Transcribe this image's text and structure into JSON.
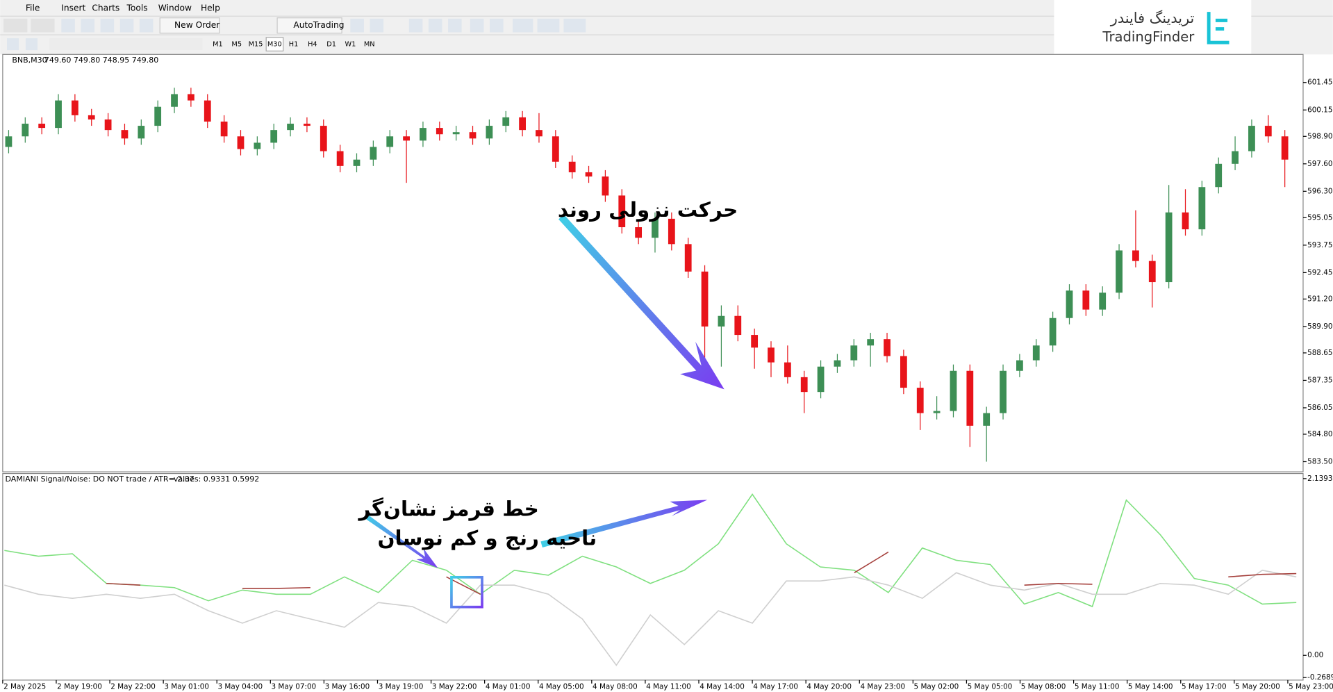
{
  "window": {
    "menu": [
      "File",
      "Insert",
      "Charts",
      "Tools",
      "Window",
      "Help"
    ],
    "toolbar": {
      "new_order": "New Order",
      "auto_trading": "AutoTrading",
      "timeframes": [
        "M1",
        "M5",
        "M15",
        "M30",
        "H1",
        "H4",
        "D1",
        "W1",
        "MN"
      ]
    },
    "logo": {
      "persian": "تریدینگ فایندر",
      "latin": "TradingFinder"
    }
  },
  "annotations": {
    "downtrend": "حرکت نزولی روند",
    "red_line_1": "خط قرمز نشان‌گر",
    "red_line_2": "ناحیه رنج و کم نوسان"
  },
  "chart_data": [
    {
      "type": "candlestick",
      "title": "BNB,M30",
      "subtitle": "749.60 749.80 748.95 749.80",
      "up_color": "#3d8f55",
      "down_color": "#e8141a",
      "open": [
        598.4,
        598.9,
        599.5,
        599.3,
        600.6,
        599.9,
        599.7,
        599.2,
        598.8,
        599.4,
        600.3,
        600.9,
        600.6,
        599.6,
        598.9,
        598.3,
        598.6,
        599.2,
        599.5,
        599.4,
        598.2,
        597.5,
        597.8,
        598.4,
        598.9,
        598.7,
        599.3,
        599.0,
        599.1,
        598.8,
        599.4,
        599.8,
        599.2,
        598.9,
        597.7,
        597.2,
        597.0,
        596.1,
        594.6,
        594.1,
        595.0,
        593.8,
        592.5,
        589.9,
        590.4,
        589.5,
        588.9,
        588.2,
        587.5,
        586.8,
        588.0,
        588.3,
        589.0,
        589.3,
        588.5,
        587.0,
        585.8,
        585.9,
        587.8,
        585.2,
        585.8,
        587.8,
        588.3,
        589.0,
        590.3,
        591.6,
        590.7,
        591.5,
        593.5,
        593.0,
        592.0,
        595.3,
        594.5,
        596.5,
        597.6,
        598.2,
        599.4,
        598.9
      ],
      "high": [
        599.2,
        599.8,
        599.8,
        600.9,
        600.9,
        600.2,
        600.0,
        599.5,
        599.7,
        600.6,
        601.2,
        601.2,
        600.9,
        599.9,
        599.2,
        598.9,
        599.5,
        599.8,
        599.8,
        599.7,
        598.5,
        598.1,
        598.7,
        599.2,
        599.2,
        599.6,
        599.6,
        599.4,
        599.4,
        599.7,
        600.1,
        600.1,
        600.0,
        599.2,
        598.0,
        597.5,
        597.3,
        596.4,
        594.9,
        595.3,
        595.3,
        594.1,
        592.8,
        590.9,
        590.9,
        589.8,
        589.2,
        589.0,
        587.8,
        588.3,
        588.6,
        589.3,
        589.6,
        589.6,
        588.8,
        587.3,
        586.6,
        588.1,
        588.1,
        586.1,
        588.1,
        588.6,
        589.3,
        590.6,
        591.9,
        591.9,
        591.8,
        593.8,
        595.4,
        593.3,
        596.6,
        596.4,
        596.8,
        597.9,
        598.9,
        599.7,
        599.9,
        599.2
      ],
      "low": [
        598.1,
        598.6,
        599.0,
        599.0,
        599.6,
        599.4,
        598.9,
        598.5,
        598.5,
        599.1,
        600.0,
        600.3,
        599.3,
        598.6,
        598.0,
        598.0,
        598.3,
        598.9,
        599.1,
        597.9,
        597.2,
        597.2,
        597.5,
        598.1,
        596.7,
        598.4,
        598.7,
        598.7,
        598.5,
        598.5,
        599.1,
        598.9,
        598.6,
        597.4,
        596.9,
        596.7,
        595.8,
        594.3,
        593.8,
        593.4,
        593.5,
        592.2,
        588.0,
        588.0,
        589.2,
        587.9,
        587.5,
        587.2,
        585.8,
        586.5,
        587.7,
        588.0,
        588.0,
        588.2,
        586.7,
        585.0,
        585.5,
        585.6,
        584.2,
        583.5,
        585.5,
        587.5,
        588.0,
        588.7,
        590.0,
        590.4,
        590.4,
        591.2,
        592.7,
        590.8,
        591.7,
        594.2,
        594.2,
        596.2,
        597.3,
        597.9,
        598.6,
        596.5
      ],
      "close": [
        598.9,
        599.5,
        599.3,
        600.6,
        599.9,
        599.7,
        599.2,
        598.8,
        599.4,
        600.3,
        600.9,
        600.6,
        599.6,
        598.9,
        598.3,
        598.6,
        599.2,
        599.5,
        599.4,
        598.2,
        597.5,
        597.8,
        598.4,
        598.9,
        598.7,
        599.3,
        599.0,
        599.1,
        598.8,
        599.4,
        599.8,
        599.2,
        598.9,
        597.7,
        597.2,
        597.0,
        596.1,
        594.6,
        594.1,
        595.0,
        593.8,
        592.5,
        589.9,
        590.4,
        589.5,
        588.9,
        588.2,
        587.5,
        586.8,
        588.0,
        588.3,
        589.0,
        589.3,
        588.5,
        587.0,
        585.8,
        585.9,
        587.8,
        585.2,
        585.8,
        587.8,
        588.3,
        589.0,
        590.3,
        591.6,
        590.7,
        591.5,
        593.5,
        593.0,
        592.0,
        595.3,
        594.5,
        596.5,
        597.6,
        598.2,
        599.4,
        598.9,
        597.8
      ],
      "ylim": [
        583.02,
        602.78
      ],
      "yticks": [
        601.45,
        600.15,
        {
          "value": 598.9,
          "label": "598.90"
        },
        {
          "value": 597.6,
          "label": "597.60"
        },
        {
          "value": 596.3,
          "label": "596.30"
        },
        595.05,
        593.75,
        592.45,
        {
          "value": 591.2,
          "label": "591.20"
        },
        {
          "value": 589.9,
          "label": "589.90"
        },
        588.65,
        587.35,
        586.05,
        {
          "value": 584.8,
          "label": "584.80"
        },
        {
          "value": 583.5,
          "label": "583.50"
        }
      ]
    },
    {
      "type": "line",
      "title": "DAMIANI Signal/Noise: DO NOT trade / ATR= 2.37",
      "subtitle": "values: 0.9331 0.5992",
      "series": [
        {
          "color": "#7fe07f",
          "values": [
            1.27,
            1.2,
            1.23,
            0.87,
            0.85,
            0.82,
            0.66,
            0.79,
            0.74,
            0.74,
            0.95,
            0.76,
            1.15,
            1.03,
            0.74,
            1.03,
            0.97,
            1.2,
            1.07,
            0.87,
            1.03,
            1.35,
            1.95,
            1.35,
            1.07,
            1.03,
            0.76,
            1.3,
            1.15,
            1.1,
            0.62,
            0.76,
            0.59,
            1.88,
            1.46,
            0.93,
            0.85,
            0.62,
            0.64
          ]
        },
        {
          "color": "#cfcfcf",
          "values": [
            0.85,
            0.74,
            0.69,
            0.74,
            0.69,
            0.74,
            0.54,
            0.39,
            0.54,
            0.44,
            0.34,
            0.64,
            0.59,
            0.39,
            0.85,
            0.85,
            0.74,
            0.44,
            -0.12,
            0.49,
            0.13,
            0.54,
            0.39,
            0.9,
            0.9,
            0.95,
            0.85,
            0.69,
            1.0,
            0.85,
            0.79,
            0.87,
            0.74,
            0.74,
            0.87,
            0.85,
            0.74,
            1.03,
            0.95
          ]
        },
        {
          "color": "#a5403c",
          "values": [
            null,
            null,
            null,
            0.87,
            0.85,
            null,
            null,
            0.81,
            0.81,
            0.82,
            null,
            null,
            null,
            0.95,
            0.74,
            null,
            null,
            null,
            null,
            null,
            null,
            null,
            null,
            null,
            null,
            1.0,
            1.25,
            null,
            null,
            null,
            0.85,
            0.87,
            0.86,
            null,
            null,
            null,
            0.95,
            0.98,
            0.99
          ]
        }
      ],
      "ylim": [
        -0.2689,
        2.1393
      ],
      "yticks": [
        2.1393,
        {
          "value": 0,
          "label": "0.00"
        },
        -0.2689
      ],
      "xtick_labels": [
        "2 May 2025",
        "2 May 19:00",
        "2 May 22:00",
        "3 May 01:00",
        "3 May 04:00",
        "3 May 07:00",
        "3 May 16:00",
        "3 May 19:00",
        "3 May 22:00",
        "4 May 01:00",
        "4 May 05:00",
        "4 May 08:00",
        "4 May 11:00",
        "4 May 14:00",
        "4 May 17:00",
        "4 May 20:00",
        "4 May 23:00",
        "5 May 02:00",
        "5 May 05:00",
        "5 May 08:00",
        "5 May 11:00",
        "5 May 14:00",
        "5 May 17:00",
        "5 May 20:00",
        "5 May 23:00"
      ]
    }
  ]
}
